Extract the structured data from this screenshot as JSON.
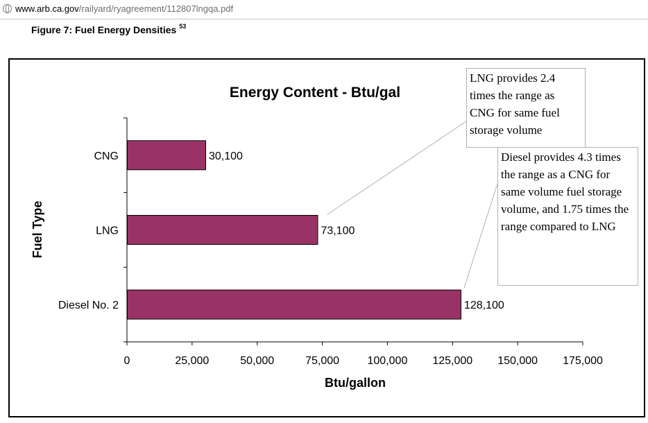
{
  "browser": {
    "url_host": "www.arb.ca.gov",
    "url_path": "/railyard/ryagreement/112807lngqa.pdf"
  },
  "figure": {
    "caption": "Figure 7: Fuel Energy Densities",
    "footnote_ref": "53"
  },
  "chart_data": {
    "type": "bar",
    "orientation": "horizontal",
    "title": "Energy Content - Btu/gal",
    "xlabel": "Btu/gallon",
    "ylabel": "Fuel Type",
    "categories": [
      "CNG",
      "LNG",
      "Diesel No. 2"
    ],
    "values": [
      30100,
      73100,
      128100
    ],
    "value_labels": [
      "30,100",
      "73,100",
      "128,100"
    ],
    "xlim": [
      0,
      175000
    ],
    "xticks": [
      0,
      25000,
      50000,
      75000,
      100000,
      125000,
      150000,
      175000
    ],
    "xtick_labels": [
      "0",
      "25,000",
      "50,000",
      "75,000",
      "100,000",
      "125,000",
      "150,000",
      "175,000"
    ],
    "grid": false,
    "legend": "none",
    "bar_color": "#993366",
    "annotations": [
      {
        "target": "LNG",
        "text": "LNG provides 2.4 times the range as CNG for same fuel storage volume"
      },
      {
        "target": "Diesel No. 2",
        "text": "Diesel provides 4.3 times the range as a CNG for same volume fuel storage volume, and 1.75 times the range compared to LNG"
      }
    ]
  }
}
